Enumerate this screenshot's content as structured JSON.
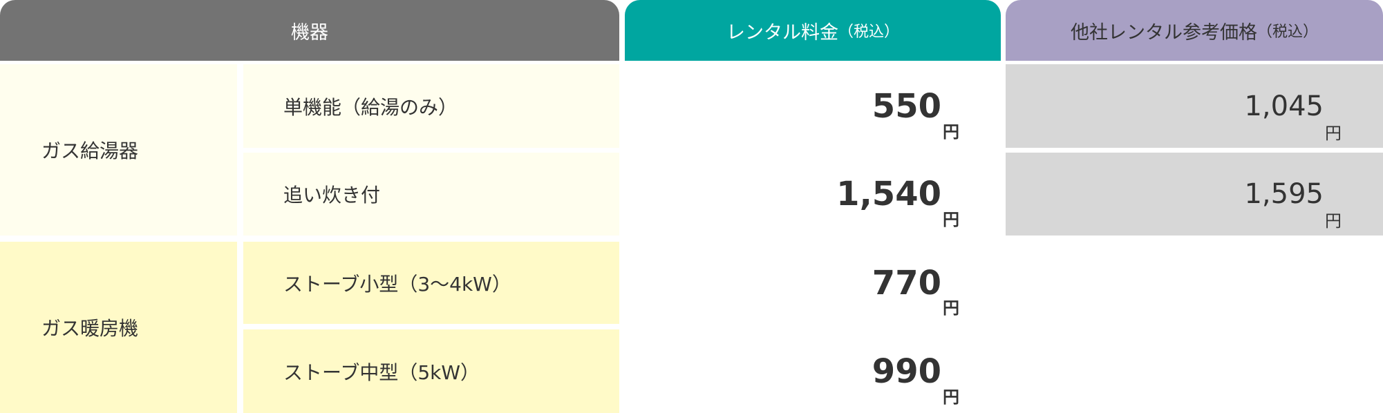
{
  "header": {
    "equipment": "機器",
    "rental_fee": "レンタル料金",
    "rental_fee_note": "（税込）",
    "other_price": "他社レンタル参考価格",
    "other_price_note": "（税込）"
  },
  "categories": [
    {
      "label": "ガス給湯器"
    },
    {
      "label": "ガス暖房機"
    }
  ],
  "rows": [
    {
      "item": "単機能（給湯のみ）",
      "price": "550",
      "ref_price": "1,045"
    },
    {
      "item": "追い炊き付",
      "price": "1,540",
      "ref_price": "1,595"
    },
    {
      "item": "ストーブ小型（3〜4kW）",
      "price": "770"
    },
    {
      "item": "ストーブ中型（5kW）",
      "price": "990"
    }
  ],
  "yen": "円",
  "colors": {
    "header_gray": "#737373",
    "teal": "#00a6a0",
    "purple": "#a8a0c4",
    "light_yellow": "#fffeee",
    "yellow": "#fffac8",
    "ref_gray": "#d7d7d7"
  }
}
